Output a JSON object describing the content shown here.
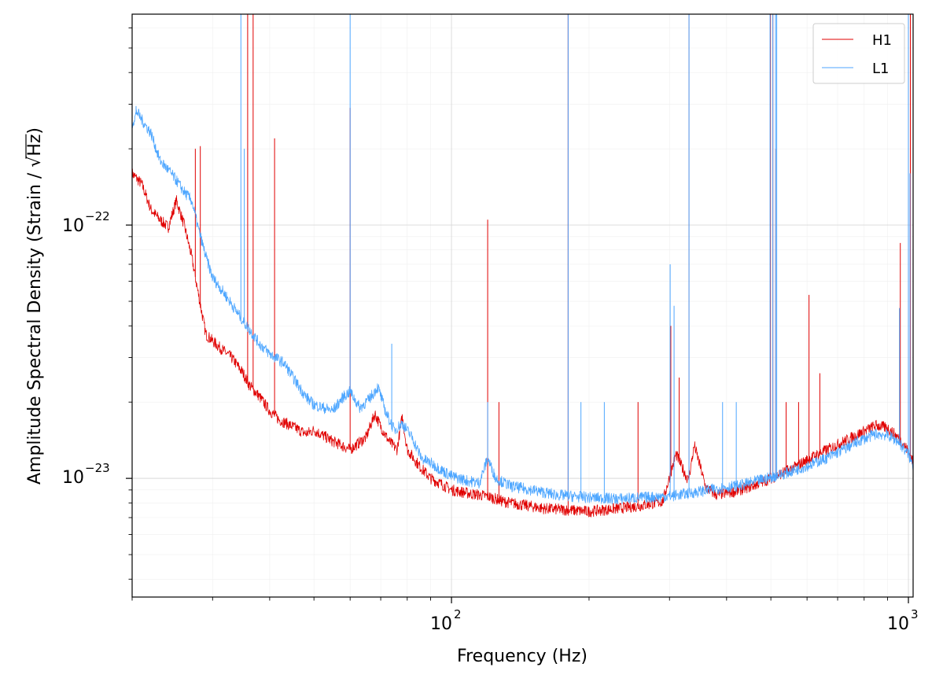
{
  "chart_data": {
    "type": "line",
    "title": "",
    "xlabel": "Frequency (Hz)",
    "ylabel_prefix": "Amplitude Spectral Density (Strain / ",
    "ylabel_radicand": "Hz",
    "ylabel_suffix": ")",
    "xscale": "log",
    "yscale": "log",
    "xlim": [
      20,
      1024
    ],
    "ylim": [
      3.4e-24,
      6.8e-22
    ],
    "x_ticks": [
      {
        "value": 100,
        "base": "10",
        "exp": "2"
      },
      {
        "value": 1000,
        "base": "10",
        "exp": "3"
      }
    ],
    "y_ticks": [
      {
        "value": 1e-23,
        "base": "10",
        "exp": "−23"
      },
      {
        "value": 1e-22,
        "base": "10",
        "exp": "−22"
      }
    ],
    "grid": true,
    "legend_position": "top-right",
    "series": [
      {
        "name": "H1",
        "color": "#e00000",
        "points": [
          [
            20,
            1.6e-22
          ],
          [
            21,
            1.45e-22
          ],
          [
            22,
            1.15e-22
          ],
          [
            23,
            1.05e-22
          ],
          [
            24,
            9.8e-23
          ],
          [
            25,
            1.25e-22
          ],
          [
            26,
            1e-22
          ],
          [
            27,
            7.5e-23
          ],
          [
            28,
            5.2e-23
          ],
          [
            29,
            3.7e-23
          ],
          [
            31,
            3.3e-23
          ],
          [
            33,
            3e-23
          ],
          [
            35,
            2.6e-23
          ],
          [
            36,
            2.35e-23
          ],
          [
            38,
            2.1e-23
          ],
          [
            40,
            1.85e-23
          ],
          [
            42,
            1.7e-23
          ],
          [
            45,
            1.6e-23
          ],
          [
            48,
            1.5e-23
          ],
          [
            50,
            1.55e-23
          ],
          [
            55,
            1.4e-23
          ],
          [
            60,
            1.3e-23
          ],
          [
            65,
            1.45e-23
          ],
          [
            68,
            1.8e-23
          ],
          [
            70,
            1.6e-23
          ],
          [
            73,
            1.4e-23
          ],
          [
            76,
            1.3e-23
          ],
          [
            78,
            1.75e-23
          ],
          [
            80,
            1.3e-23
          ],
          [
            85,
            1.12e-23
          ],
          [
            90,
            1e-23
          ],
          [
            95,
            9.5e-24
          ],
          [
            100,
            9e-24
          ],
          [
            110,
            8.7e-24
          ],
          [
            120,
            8.5e-24
          ],
          [
            130,
            8.1e-24
          ],
          [
            140,
            7.9e-24
          ],
          [
            160,
            7.6e-24
          ],
          [
            180,
            7.5e-24
          ],
          [
            200,
            7.4e-24
          ],
          [
            230,
            7.6e-24
          ],
          [
            260,
            7.8e-24
          ],
          [
            290,
            8.1e-24
          ],
          [
            310,
            1.25e-23
          ],
          [
            320,
            1.1e-23
          ],
          [
            330,
            9.8e-24
          ],
          [
            340,
            1.35e-23
          ],
          [
            350,
            1.12e-23
          ],
          [
            360,
            9.2e-24
          ],
          [
            380,
            8.6e-24
          ],
          [
            420,
            8.9e-24
          ],
          [
            460,
            9.4e-24
          ],
          [
            500,
            1e-23
          ],
          [
            560,
            1.1e-23
          ],
          [
            620,
            1.22e-23
          ],
          [
            700,
            1.36e-23
          ],
          [
            780,
            1.5e-23
          ],
          [
            850,
            1.62e-23
          ],
          [
            900,
            1.58e-23
          ],
          [
            950,
            1.45e-23
          ],
          [
            1000,
            1.28e-23
          ],
          [
            1024,
            1.15e-23
          ]
        ],
        "spikes": [
          [
            27.5,
            2e-22
          ],
          [
            28.2,
            2.05e-22
          ],
          [
            35.8,
            6.8e-22
          ],
          [
            36.8,
            6.8e-22
          ],
          [
            41,
            2.2e-22
          ],
          [
            60,
            2.9e-22
          ],
          [
            120,
            1.05e-22
          ],
          [
            127,
            2e-23
          ],
          [
            180,
            6.8e-22
          ],
          [
            256,
            2e-23
          ],
          [
            302,
            4e-23
          ],
          [
            315,
            2.5e-23
          ],
          [
            331,
            6.8e-22
          ],
          [
            499,
            6.8e-22
          ],
          [
            505,
            6.8e-22
          ],
          [
            512,
            2e-22
          ],
          [
            540,
            2e-23
          ],
          [
            575,
            2e-23
          ],
          [
            606,
            5.3e-23
          ],
          [
            640,
            2.6e-23
          ],
          [
            960,
            8.5e-23
          ],
          [
            1000,
            6.8e-22
          ],
          [
            1010,
            6.8e-22
          ]
        ]
      },
      {
        "name": "L1",
        "color": "#4da6ff",
        "points": [
          [
            20,
            2.5e-22
          ],
          [
            20.5,
            2.8e-22
          ],
          [
            21,
            2.6e-22
          ],
          [
            22,
            2.3e-22
          ],
          [
            23,
            1.8e-22
          ],
          [
            24,
            1.65e-22
          ],
          [
            25,
            1.5e-22
          ],
          [
            26,
            1.35e-22
          ],
          [
            27,
            1.25e-22
          ],
          [
            28,
            9.5e-23
          ],
          [
            29,
            7.5e-23
          ],
          [
            30,
            6.2e-23
          ],
          [
            32,
            5.3e-23
          ],
          [
            34,
            4.5e-23
          ],
          [
            36,
            3.9e-23
          ],
          [
            38,
            3.4e-23
          ],
          [
            40,
            3.1e-23
          ],
          [
            43,
            2.85e-23
          ],
          [
            45,
            2.5e-23
          ],
          [
            48,
            2.1e-23
          ],
          [
            50,
            1.95e-23
          ],
          [
            55,
            1.85e-23
          ],
          [
            58,
            2.1e-23
          ],
          [
            60,
            2.2e-23
          ],
          [
            63,
            1.9e-23
          ],
          [
            66,
            2.05e-23
          ],
          [
            69,
            2.3e-23
          ],
          [
            72,
            1.8e-23
          ],
          [
            75,
            1.55e-23
          ],
          [
            78,
            1.65e-23
          ],
          [
            82,
            1.45e-23
          ],
          [
            86,
            1.2e-23
          ],
          [
            90,
            1.15e-23
          ],
          [
            95,
            1.08e-23
          ],
          [
            100,
            1.02e-23
          ],
          [
            108,
            9.8e-24
          ],
          [
            115,
            9.6e-24
          ],
          [
            120,
            1.2e-23
          ],
          [
            125,
            1e-23
          ],
          [
            135,
            9.3e-24
          ],
          [
            150,
            9e-24
          ],
          [
            170,
            8.6e-24
          ],
          [
            200,
            8.4e-24
          ],
          [
            230,
            8.3e-24
          ],
          [
            260,
            8.4e-24
          ],
          [
            300,
            8.5e-24
          ],
          [
            340,
            8.8e-24
          ],
          [
            380,
            9.1e-24
          ],
          [
            430,
            9.4e-24
          ],
          [
            480,
            9.9e-24
          ],
          [
            540,
            1.05e-23
          ],
          [
            600,
            1.12e-23
          ],
          [
            660,
            1.2e-23
          ],
          [
            720,
            1.3e-23
          ],
          [
            790,
            1.42e-23
          ],
          [
            850,
            1.5e-23
          ],
          [
            900,
            1.48e-23
          ],
          [
            950,
            1.4e-23
          ],
          [
            1000,
            1.24e-23
          ],
          [
            1024,
            1.12e-23
          ]
        ],
        "spikes": [
          [
            20.4,
            2.95e-22
          ],
          [
            34.6,
            6.8e-22
          ],
          [
            35.2,
            2e-22
          ],
          [
            60,
            6.8e-22
          ],
          [
            74,
            3.4e-23
          ],
          [
            120,
            2e-23
          ],
          [
            180,
            6.8e-22
          ],
          [
            192,
            2e-23
          ],
          [
            216,
            2e-23
          ],
          [
            301,
            7e-23
          ],
          [
            307,
            4.8e-23
          ],
          [
            331,
            6.8e-22
          ],
          [
            392,
            2e-23
          ],
          [
            420,
            2e-23
          ],
          [
            498,
            6.8e-22
          ],
          [
            505,
            6.8e-22
          ],
          [
            512,
            6.8e-22
          ],
          [
            515,
            6.8e-22
          ],
          [
            956,
            4.7e-23
          ],
          [
            1000,
            6.8e-22
          ],
          [
            1008,
            1.6e-22
          ]
        ]
      }
    ]
  }
}
